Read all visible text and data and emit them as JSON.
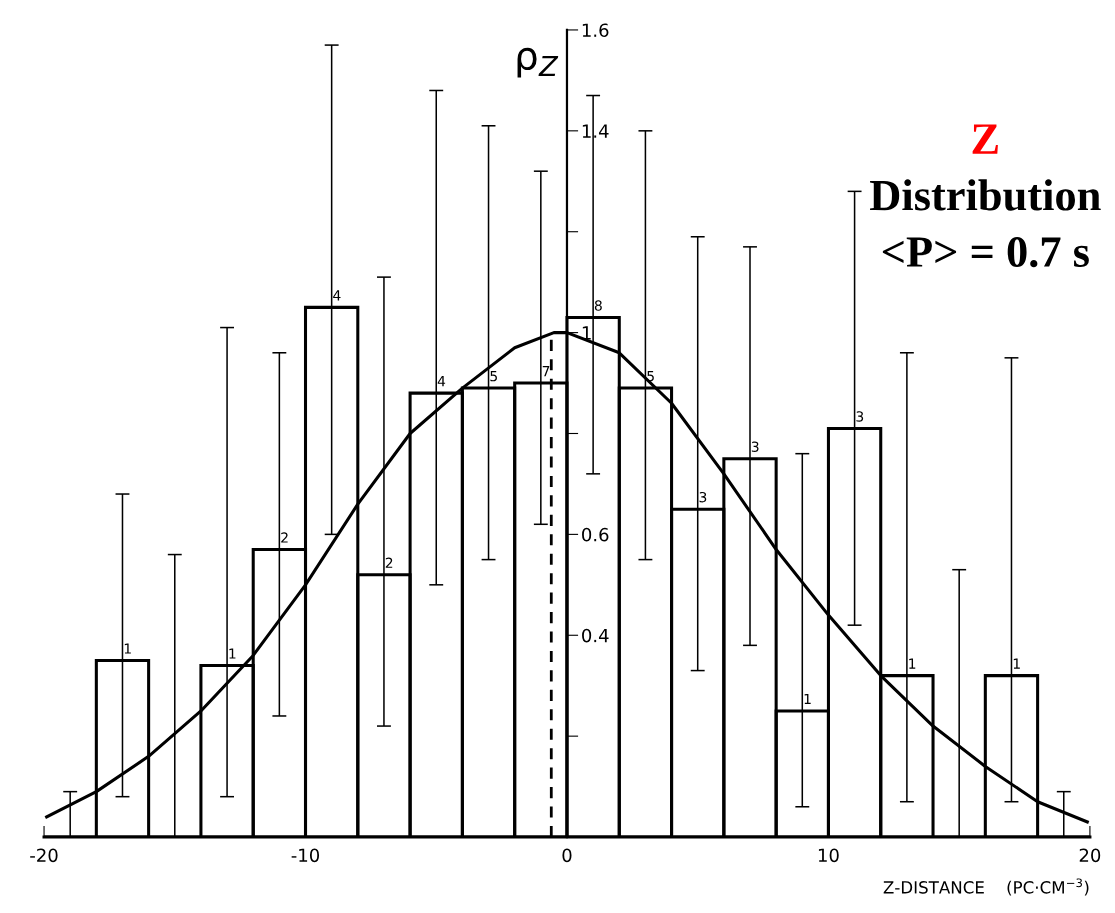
{
  "chart_data": {
    "type": "histogram",
    "xlabel": "Z-DISTANCE    (PC·CM$^{−3}$)",
    "ylabel": "ρ$_{Z}$",
    "annotations": [
      "Z",
      "Distribution",
      "<P> = 0.7 s",
      {
        "text": "1",
        "x": -17,
        "y": 0.35
      },
      {
        "text": "1",
        "x": -13,
        "y": 0.34
      },
      {
        "text": "2",
        "x": -11,
        "y": 0.57
      },
      {
        "text": "4",
        "x": -9,
        "y": 1.05
      },
      {
        "text": "2",
        "x": -7,
        "y": 0.52
      },
      {
        "text": "4",
        "x": -5,
        "y": 0.88
      },
      {
        "text": "5",
        "x": -3,
        "y": 0.89
      },
      {
        "text": "7",
        "x": -1,
        "y": 0.9
      },
      {
        "text": "8",
        "x": 1,
        "y": 1.03
      },
      {
        "text": "5",
        "x": 3,
        "y": 0.89
      },
      {
        "text": "3",
        "x": 5,
        "y": 0.65
      },
      {
        "text": "3",
        "x": 7,
        "y": 0.75
      },
      {
        "text": "1",
        "x": 9,
        "y": 0.25
      },
      {
        "text": "3",
        "x": 11,
        "y": 0.81
      },
      {
        "text": "1",
        "x": 13,
        "y": 0.32
      },
      {
        "text": "1",
        "x": 17,
        "y": 0.32
      }
    ],
    "bins": [
      -20,
      -18,
      -16,
      -14,
      -12,
      -10,
      -8,
      -6,
      -4,
      -2,
      0,
      2,
      4,
      6,
      8,
      10,
      12,
      14,
      16,
      18,
      20
    ],
    "values": [
      0,
      0.35,
      0,
      0.34,
      0.57,
      1.05,
      0.52,
      0.88,
      0.89,
      0.9,
      1.03,
      0.89,
      0.65,
      0.75,
      0.25,
      0.81,
      0.32,
      0,
      0.32,
      0
    ],
    "color": "#000000",
    "errors": [
      [
        0,
        0.09
      ],
      [
        0.08,
        0.68
      ],
      [
        0,
        0.56
      ],
      [
        0.08,
        1.01
      ],
      [
        0.24,
        0.96
      ],
      [
        0.6,
        1.57
      ],
      [
        0.22,
        1.11
      ],
      [
        0.5,
        1.48
      ],
      [
        0.55,
        1.41
      ],
      [
        0.62,
        1.32
      ],
      [
        0.72,
        1.47
      ],
      [
        0.55,
        1.4
      ],
      [
        0.33,
        1.19
      ],
      [
        0.38,
        1.17
      ],
      [
        0.06,
        0.76
      ],
      [
        0.42,
        1.28
      ],
      [
        0.07,
        0.96
      ],
      [
        0,
        0.53
      ],
      [
        0.07,
        0.95
      ],
      [
        0,
        0.09
      ]
    ],
    "series": [
      {
        "type": "line",
        "color": "#000000",
        "x": [
          -19.9,
          -18,
          -16,
          -14,
          -12,
          -10,
          -8,
          -6,
          -4,
          -2,
          -0.5,
          0,
          2,
          4,
          6,
          8,
          10,
          12,
          14,
          16,
          18,
          19.9
        ],
        "values": [
          0.04,
          0.09,
          0.16,
          0.25,
          0.36,
          0.5,
          0.66,
          0.8,
          0.89,
          0.97,
          1.0,
          1.0,
          0.96,
          0.86,
          0.72,
          0.57,
          0.44,
          0.32,
          0.22,
          0.14,
          0.07,
          0.03
        ]
      }
    ],
    "ref_lines": [
      {
        "axis": "x",
        "value": -0.6,
        "line_style": "dashed",
        "color": "#000000"
      }
    ],
    "xlim": [
      -20,
      20
    ],
    "xticks": [
      -20,
      -10,
      0,
      10,
      20
    ],
    "ylim": [
      0,
      1.6
    ],
    "yticks": [
      {
        "value": 0.2,
        "label": null
      },
      0.4,
      0.6,
      {
        "value": 0.8,
        "label": null
      },
      1,
      {
        "value": 1.2,
        "label": null
      },
      1.4,
      1.6
    ],
    "grid": false,
    "legend": false
  }
}
